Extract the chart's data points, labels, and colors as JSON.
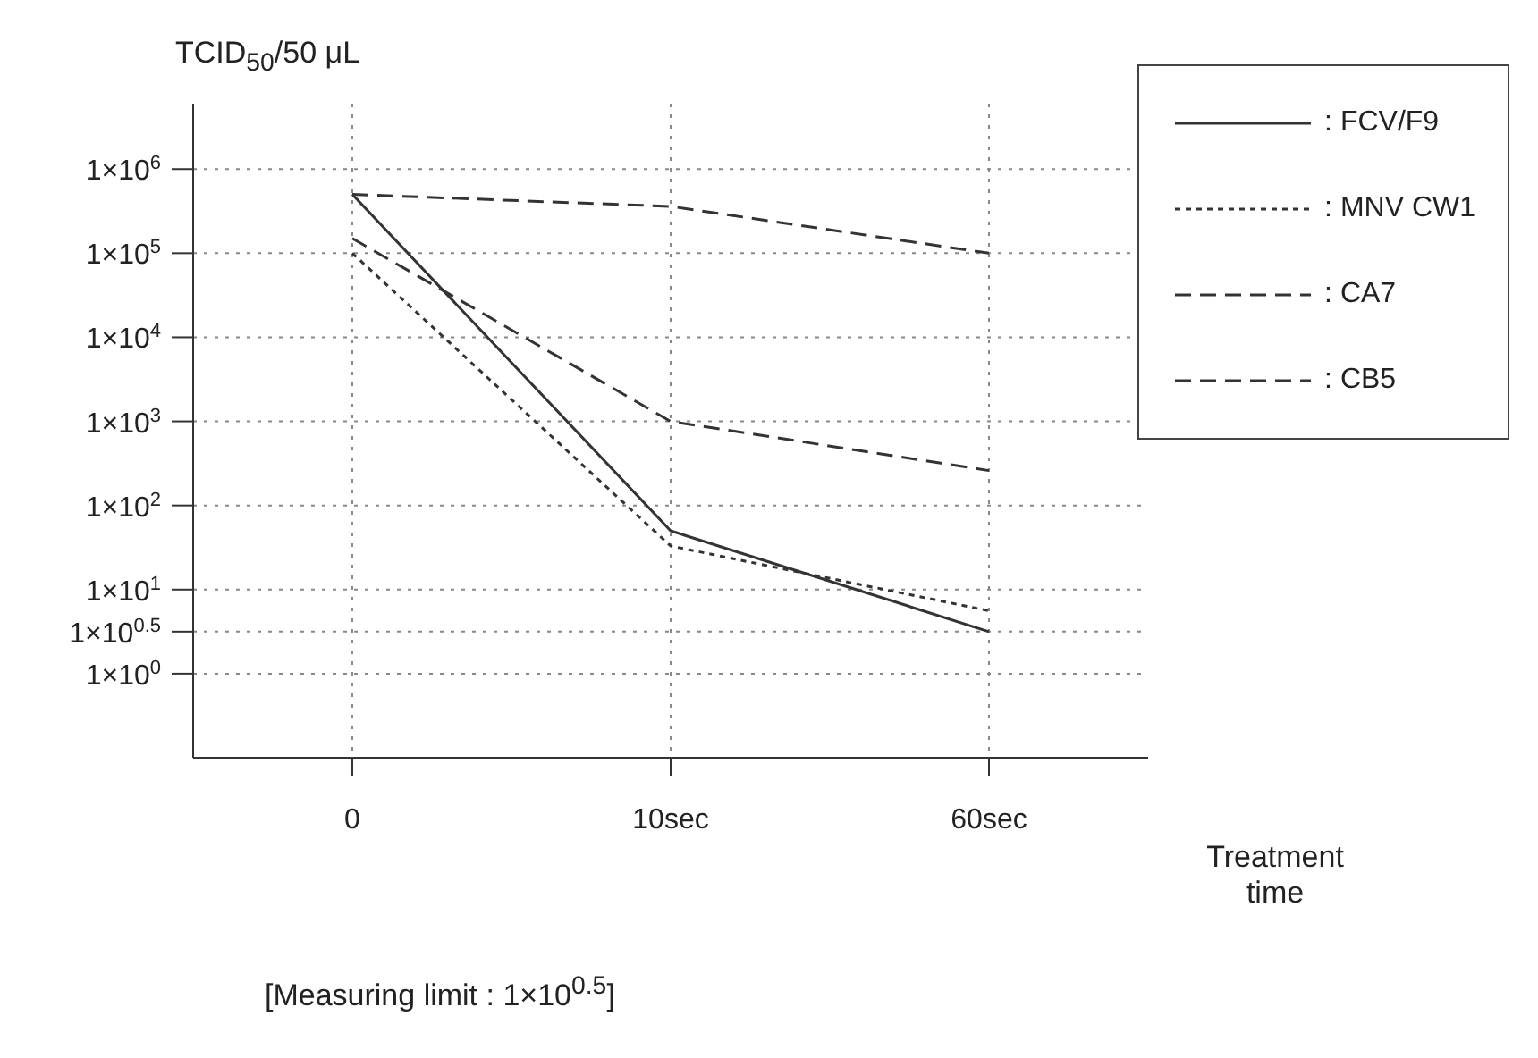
{
  "chart_data": {
    "type": "line",
    "ylabel": "TCID$_{50}$/50 μL",
    "xlabel": "Treatment time",
    "categories": [
      "0",
      "10sec",
      "60sec"
    ],
    "series": [
      {
        "name": ": FCV/F9",
        "color": "#333333",
        "line_style": "solid",
        "values": [
          500000,
          50,
          3.162
        ]
      },
      {
        "name": ": MNV CW1",
        "color": "#333333",
        "line_style": "dotted",
        "values": [
          100000,
          33,
          5.6
        ]
      },
      {
        "name": ": CA7",
        "color": "#333333",
        "line_style": "dashed",
        "values": [
          150000,
          1000,
          260
        ]
      },
      {
        "name": ": CB5",
        "color": "#333333",
        "line_style": "dashed",
        "values": [
          500000,
          360000,
          100000
        ]
      }
    ],
    "log": "y",
    "ylim": [
      0.1,
      6000000
    ],
    "yticks": [
      {
        "value": 1,
        "label": "1×10$^{0}$"
      },
      {
        "value": 3.162,
        "label": "1×10$^{0.5}$"
      },
      {
        "value": 10,
        "label": "1×10$^{1}$"
      },
      {
        "value": 100,
        "label": "1×10$^{2}$"
      },
      {
        "value": 1000,
        "label": "1×10$^{3}$"
      },
      {
        "value": 10000,
        "label": "1×10$^{4}$"
      },
      {
        "value": 100000,
        "label": "1×10$^{5}$"
      },
      {
        "value": 1000000,
        "label": "1×10$^{6}$"
      }
    ],
    "grid": true,
    "legend": "top right",
    "marker": "none",
    "annotations": [
      "[Measuring limit : 1×10$^{0.5}$]"
    ]
  }
}
